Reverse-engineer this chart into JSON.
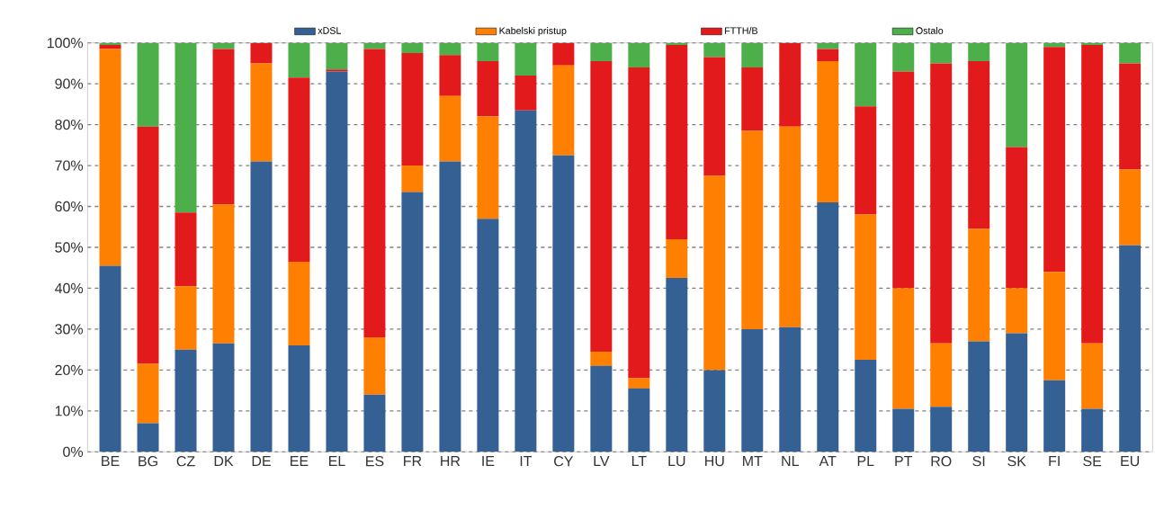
{
  "chart_data": {
    "type": "bar",
    "stacked": true,
    "categories": [
      "BE",
      "BG",
      "CZ",
      "DK",
      "DE",
      "EE",
      "EL",
      "ES",
      "FR",
      "HR",
      "IE",
      "IT",
      "CY",
      "LV",
      "LT",
      "LU",
      "HU",
      "MT",
      "NL",
      "AT",
      "PL",
      "PT",
      "RO",
      "SI",
      "SK",
      "FI",
      "SE",
      "EU"
    ],
    "series": [
      {
        "name": "xDSL",
        "color": "#356094",
        "values": [
          45.5,
          7,
          25,
          26.5,
          71,
          26,
          93,
          14,
          63.5,
          71,
          57,
          83.5,
          72.5,
          21,
          15.5,
          42.5,
          20,
          30,
          30.5,
          61,
          22.5,
          10.5,
          11,
          27,
          29,
          17.5,
          10.5,
          50.5
        ]
      },
      {
        "name": "Kabelski pristup",
        "color": "#ff7f00",
        "values": [
          53,
          14.5,
          15.5,
          34,
          24,
          20.5,
          0,
          14,
          6.5,
          16,
          25,
          0,
          22,
          3.5,
          2.5,
          9.5,
          47.5,
          48.5,
          49,
          34.5,
          35.5,
          29.5,
          15.5,
          27.5,
          11,
          26.5,
          16,
          18.5
        ]
      },
      {
        "name": "FTTH/B",
        "color": "#e31a1c",
        "values": [
          1,
          58,
          18,
          38,
          5,
          45,
          0.5,
          70.5,
          27.5,
          10,
          13.5,
          8.5,
          5.5,
          71,
          76,
          47.5,
          29,
          15.5,
          20.5,
          3,
          26.5,
          53,
          68.5,
          41,
          34.5,
          55,
          73,
          26
        ]
      },
      {
        "name": "Ostalo",
        "color": "#4daf4a",
        "values": [
          0.5,
          20.5,
          41.5,
          1.5,
          0,
          8.5,
          6.5,
          1.5,
          2.5,
          3,
          4.5,
          8,
          0,
          4.5,
          6,
          0.5,
          3.5,
          6,
          0,
          1.5,
          15.5,
          7,
          5,
          4.5,
          25.5,
          1,
          0.5,
          5
        ]
      }
    ],
    "ylim": [
      0,
      100
    ],
    "yticks": [
      {
        "value": 0,
        "label": "0%"
      },
      {
        "value": 10,
        "label": "10%"
      },
      {
        "value": 20,
        "label": "20%"
      },
      {
        "value": 30,
        "label": "30%"
      },
      {
        "value": 40,
        "label": "40%"
      },
      {
        "value": 50,
        "label": "50%"
      },
      {
        "value": 60,
        "label": "60%"
      },
      {
        "value": 70,
        "label": "70%"
      },
      {
        "value": 80,
        "label": "80%"
      },
      {
        "value": 90,
        "label": "90%"
      },
      {
        "value": 100,
        "label": "100%"
      }
    ],
    "grid": "y",
    "legend": "top"
  }
}
